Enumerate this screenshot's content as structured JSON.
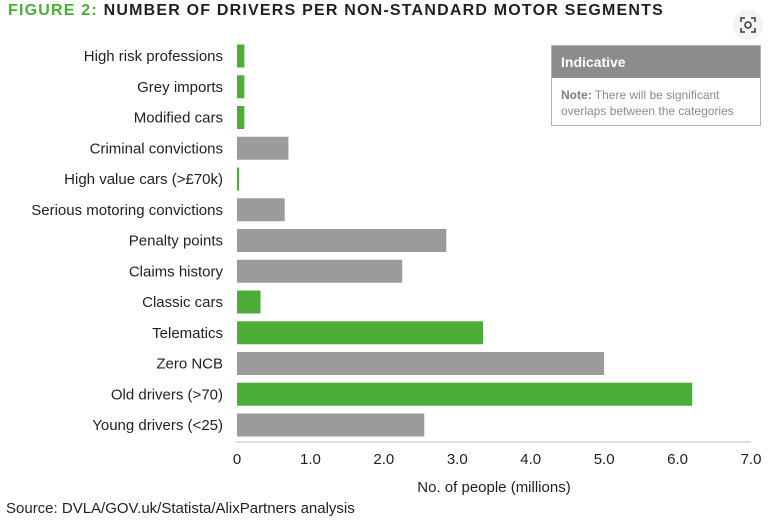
{
  "header": {
    "figure_label": "FIGURE 2:",
    "title": "NUMBER OF DRIVERS PER NON-STANDARD MOTOR SEGMENTS"
  },
  "toolbar": {
    "lens_icon": "lens-search-icon"
  },
  "legend_box": {
    "heading": "Indicative",
    "note_label": "Note:",
    "note_text": "There will be significant overlaps between the categories"
  },
  "source": "Source: DVLA/GOV.uk/Statista/AlixPartners analysis",
  "colors": {
    "green": "#4cad38",
    "grey": "#9b9b9b",
    "axis": "#bfbfbf"
  },
  "chart_data": {
    "type": "bar",
    "orientation": "horizontal",
    "categories": [
      "High risk professions",
      "Grey imports",
      "Modified cars",
      "Criminal convictions",
      "High value cars (>£70k)",
      "Serious motoring convictions",
      "Penalty points",
      "Claims history",
      "Classic cars",
      "Telematics",
      "Zero NCB",
      "Old drivers (>70)",
      "Young drivers (<25)"
    ],
    "values": [
      0.1,
      0.1,
      0.1,
      0.7,
      0.02,
      0.65,
      2.85,
      2.25,
      0.32,
      3.35,
      5.0,
      6.2,
      2.55
    ],
    "bar_colors": [
      "green",
      "green",
      "green",
      "grey",
      "green",
      "grey",
      "grey",
      "grey",
      "green",
      "green",
      "grey",
      "green",
      "grey"
    ],
    "xlabel": "No. of people (millions)",
    "ylabel": "",
    "xlim": [
      0,
      7
    ],
    "xticks": [
      "0",
      "1.0",
      "2.0",
      "3.0",
      "4.0",
      "5.0",
      "6.0",
      "7.0"
    ],
    "grid": false
  }
}
